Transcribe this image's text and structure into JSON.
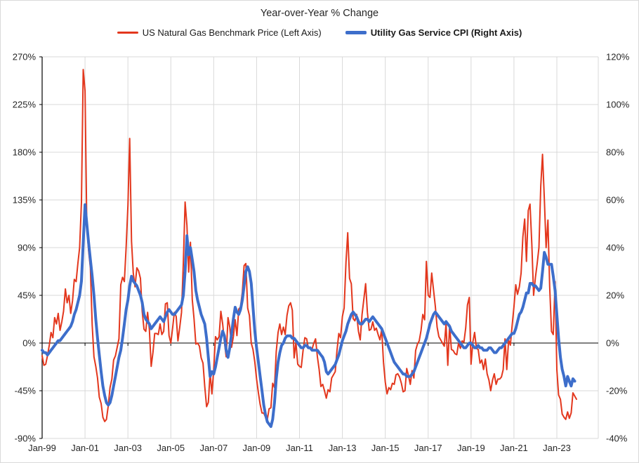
{
  "chart_data": {
    "type": "line",
    "title": "Year-over-Year % Change",
    "x_start": "1999-01",
    "x_frequency": "monthly",
    "x_tick_labels": [
      "Jan-99",
      "Jan-01",
      "Jan-03",
      "Jan-05",
      "Jan-07",
      "Jan-09",
      "Jan-11",
      "Jan-13",
      "Jan-15",
      "Jan-17",
      "Jan-19",
      "Jan-21",
      "Jan-23"
    ],
    "left_axis": {
      "tick_labels": [
        "270%",
        "225%",
        "180%",
        "135%",
        "90%",
        "45%",
        "0%",
        "-45%",
        "-90%"
      ],
      "tick_values": [
        270,
        225,
        180,
        135,
        90,
        45,
        0,
        -45,
        -90
      ],
      "range": [
        -90,
        270
      ],
      "format": "percent"
    },
    "right_axis": {
      "tick_labels": [
        "120%",
        "100%",
        "80%",
        "60%",
        "40%",
        "20%",
        "0%",
        "-20%",
        "-40%"
      ],
      "tick_values": [
        120,
        100,
        80,
        60,
        40,
        20,
        0,
        -20,
        -40
      ],
      "range": [
        -40,
        120
      ],
      "format": "percent"
    },
    "grid": true,
    "legend_position": "top",
    "colors": {
      "grid": "#d9d9d9",
      "axis": "#000000",
      "text": "#262626",
      "red_series": "#e3371d",
      "blue_series": "#3d6ecb"
    },
    "series": [
      {
        "name": "US Natural Gas Benchmark Price (Left Axis)",
        "axis": "left",
        "color": "#e3371d",
        "stroke_width": 2,
        "values": [
          -12,
          -21,
          -20,
          -12,
          -2,
          10,
          5,
          24,
          18,
          28,
          12,
          20,
          30,
          51,
          38,
          45,
          28,
          40,
          60,
          58,
          75,
          90,
          133,
          258,
          238,
          111,
          87,
          71,
          17,
          -13,
          -22,
          -33,
          -51,
          -57,
          -70,
          -74,
          -72,
          -59,
          -42,
          -34,
          -16,
          -12,
          -4,
          4,
          55,
          62,
          58,
          90,
          130,
          193,
          96,
          66,
          53,
          71,
          68,
          61,
          30,
          13,
          11,
          29,
          13,
          -22,
          -9,
          9,
          9,
          8,
          18,
          8,
          11,
          37,
          38,
          7,
          0,
          14,
          29,
          25,
          2,
          15,
          29,
          76,
          133,
          111,
          67,
          95,
          41,
          23,
          -1,
          0,
          -3,
          -14,
          -19,
          -41,
          -60,
          -56,
          -28,
          -48,
          -25,
          6,
          3,
          6,
          30,
          18,
          1,
          -13,
          24,
          15,
          -4,
          6,
          22,
          7,
          32,
          34,
          48,
          73,
          75,
          33,
          26,
          0,
          -6,
          -18,
          -34,
          -47,
          -58,
          -66,
          -66,
          -70,
          -72,
          -62,
          -61,
          -38,
          -42,
          -8,
          10,
          18,
          8,
          15,
          8,
          26,
          35,
          38,
          31,
          -14,
          1,
          -20,
          -22,
          -23,
          -7,
          5,
          4,
          -5,
          -5,
          -6,
          0,
          4,
          -13,
          -25,
          -41,
          -39,
          -45,
          -52,
          -44,
          -46,
          -33,
          -30,
          -27,
          -7,
          9,
          5,
          25,
          33,
          76,
          104,
          61,
          56,
          23,
          21,
          27,
          11,
          3,
          27,
          41,
          56,
          29,
          12,
          13,
          20,
          12,
          14,
          8,
          3,
          13,
          -18,
          -37,
          -48,
          -42,
          -44,
          -38,
          -39,
          -30,
          -29,
          -32,
          -38,
          -46,
          -45,
          -24,
          -31,
          -39,
          -26,
          -33,
          -7,
          -1,
          2,
          12,
          27,
          22,
          77,
          45,
          43,
          66,
          50,
          35,
          15,
          6,
          3,
          0,
          -3,
          18,
          -21,
          17,
          -6,
          -7,
          -10,
          -11,
          0,
          -5,
          2,
          1,
          14,
          36,
          43,
          -20,
          1,
          10,
          -5,
          -6,
          -19,
          -16,
          -25,
          -15,
          -29,
          -35,
          -45,
          -35,
          -29,
          -39,
          -34,
          -34,
          -32,
          -25,
          4,
          -25,
          3,
          -2,
          17,
          34,
          55,
          46,
          53,
          66,
          100,
          117,
          77,
          125,
          131,
          93,
          45,
          62,
          75,
          90,
          148,
          178,
          136,
          90,
          116,
          53,
          11,
          8,
          58,
          -25,
          -49,
          -53,
          -67,
          -70,
          -72,
          -65,
          -71,
          -66,
          -47,
          -50,
          -53
        ]
      },
      {
        "name": "Utility Gas Service CPI (Right Axis)",
        "axis": "right",
        "color": "#3d6ecb",
        "stroke_width": 4,
        "values": [
          -3,
          -4,
          -4,
          -5,
          -4,
          -3,
          -2,
          -1,
          0,
          1,
          1,
          2,
          3,
          4,
          5,
          6,
          7,
          9,
          12,
          14,
          17,
          20,
          26,
          42,
          58,
          50,
          42,
          35,
          28,
          20,
          10,
          2,
          -5,
          -12,
          -18,
          -22,
          -25,
          -26,
          -25,
          -22,
          -18,
          -14,
          -10,
          -6,
          -3,
          2,
          8,
          14,
          18,
          24,
          28,
          26,
          25,
          24,
          22,
          20,
          17,
          12,
          10,
          9,
          8,
          6,
          7,
          8,
          9,
          10,
          11,
          10,
          9,
          11,
          13,
          14,
          13,
          12,
          12,
          13,
          14,
          15,
          16,
          20,
          30,
          45,
          37,
          40,
          35,
          30,
          22,
          18,
          15,
          12,
          10,
          8,
          2,
          -6,
          -14,
          -12,
          -13,
          -10,
          -6,
          -2,
          2,
          5,
          3,
          -3,
          -6,
          -2,
          4,
          10,
          15,
          13,
          12,
          14,
          18,
          24,
          30,
          32,
          30,
          25,
          15,
          5,
          -2,
          -8,
          -14,
          -20,
          -26,
          -30,
          -33,
          -34,
          -35,
          -32,
          -25,
          -15,
          -8,
          -4,
          -1,
          0,
          2,
          3,
          3,
          3,
          2,
          2,
          1,
          0,
          -1,
          -2,
          -2,
          -1,
          -1,
          -2,
          -2,
          -3,
          -3,
          -3,
          -3,
          -4,
          -5,
          -6,
          -8,
          -12,
          -13,
          -12,
          -11,
          -10,
          -9,
          -7,
          -5,
          -2,
          1,
          3,
          5,
          8,
          10,
          12,
          13,
          12,
          11,
          9,
          8,
          8,
          9,
          10,
          10,
          9,
          10,
          11,
          10,
          9,
          8,
          7,
          6,
          4,
          2,
          0,
          -2,
          -4,
          -6,
          -8,
          -9,
          -10,
          -11,
          -12,
          -13,
          -13,
          -14,
          -14,
          -14,
          -13,
          -12,
          -10,
          -8,
          -6,
          -4,
          -2,
          0,
          2,
          5,
          8,
          10,
          12,
          13,
          12,
          11,
          10,
          9,
          8,
          9,
          8,
          7,
          5,
          4,
          3,
          2,
          1,
          0,
          -1,
          -2,
          -2,
          -1,
          0,
          0,
          -1,
          -2,
          -2,
          -1,
          -2,
          -2,
          -3,
          -3,
          -3,
          -2,
          -2,
          -3,
          -4,
          -4,
          -3,
          -2,
          -2,
          -1,
          0,
          1,
          2,
          3,
          4,
          4,
          6,
          9,
          12,
          13,
          15,
          18,
          21,
          21,
          25,
          25,
          24,
          24,
          23,
          22,
          23,
          30,
          38,
          36,
          33,
          33,
          33,
          28,
          22,
          12,
          2,
          -6,
          -11,
          -14,
          -18,
          -14,
          -16,
          -18,
          -15,
          -16
        ]
      }
    ]
  }
}
